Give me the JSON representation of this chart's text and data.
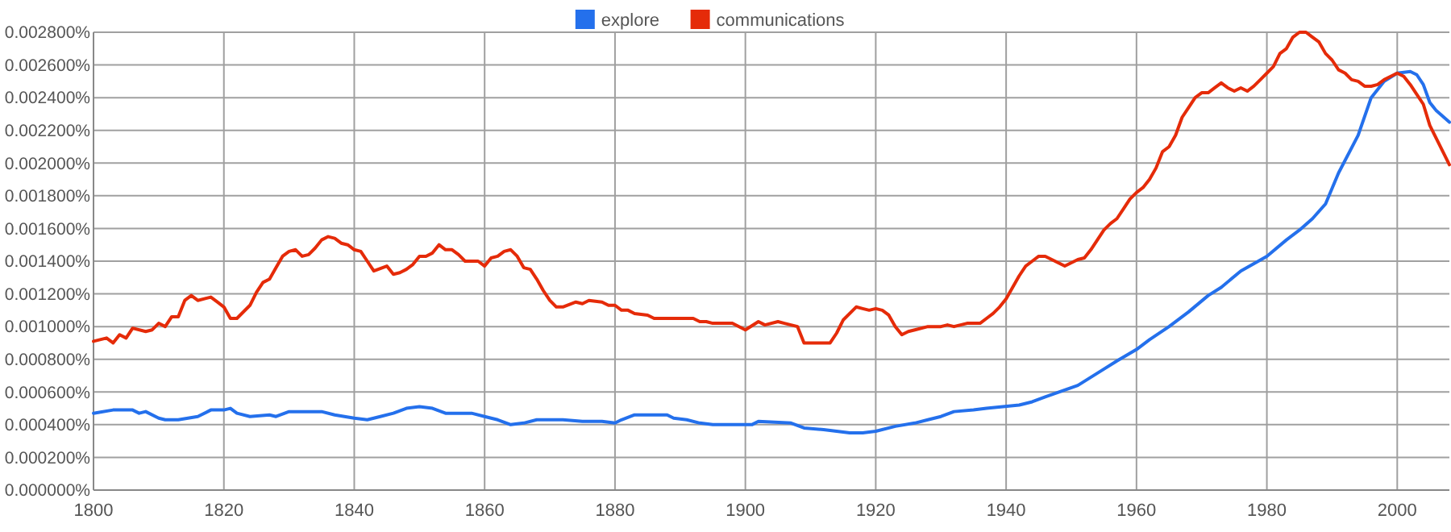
{
  "chart_data": {
    "type": "line",
    "legend": "top",
    "grid": true,
    "xlim": [
      1800,
      2008
    ],
    "xticks": [
      1800,
      1820,
      1840,
      1860,
      1880,
      1900,
      1920,
      1940,
      1960,
      1980,
      2000
    ],
    "ylim": [
      0,
      0.0028
    ],
    "yticks": [
      {
        "value": 0,
        "label": "0.000000%"
      },
      {
        "value": 0.0002,
        "label": "0.000200%"
      },
      {
        "value": 0.0004,
        "label": "0.000400%"
      },
      {
        "value": 0.0006,
        "label": "0.000600%"
      },
      {
        "value": 0.0008,
        "label": "0.000800%"
      },
      {
        "value": 0.001,
        "label": "0.001000%"
      },
      {
        "value": 0.0012,
        "label": "0.001200%"
      },
      {
        "value": 0.0014,
        "label": "0.001400%"
      },
      {
        "value": 0.0016,
        "label": "0.001600%"
      },
      {
        "value": 0.0018,
        "label": "0.001800%"
      },
      {
        "value": 0.002,
        "label": "0.002000%"
      },
      {
        "value": 0.0022,
        "label": "0.002200%"
      },
      {
        "value": 0.0024,
        "label": "0.002400%"
      },
      {
        "value": 0.0026,
        "label": "0.002600%"
      },
      {
        "value": 0.0028,
        "label": "0.002800%"
      }
    ],
    "series": [
      {
        "name": "explore",
        "color": "#2470ec",
        "x": [
          1800,
          1803,
          1806,
          1807,
          1808,
          1810,
          1811,
          1813,
          1816,
          1818,
          1820,
          1821,
          1822,
          1824,
          1827,
          1828,
          1830,
          1835,
          1837,
          1840,
          1842,
          1844,
          1846,
          1848,
          1850,
          1852,
          1854,
          1856,
          1858,
          1860,
          1862,
          1864,
          1866,
          1868,
          1870,
          1872,
          1875,
          1878,
          1880,
          1881,
          1883,
          1886,
          1888,
          1889,
          1891,
          1893,
          1895,
          1898,
          1901,
          1902,
          1907,
          1909,
          1912,
          1916,
          1918,
          1920,
          1923,
          1926,
          1928,
          1930,
          1932,
          1935,
          1937,
          1942,
          1944,
          1946,
          1951,
          1955,
          1957,
          1960,
          1962,
          1965,
          1968,
          1971,
          1973,
          1976,
          1980,
          1983,
          1985,
          1987,
          1989,
          1991,
          1994,
          1996,
          1998,
          2000,
          2002,
          2003,
          2004,
          2005,
          2006,
          2008
        ],
        "values": [
          0.00047,
          0.00049,
          0.00049,
          0.00047,
          0.00048,
          0.00044,
          0.00043,
          0.00043,
          0.00045,
          0.00049,
          0.00049,
          0.0005,
          0.00047,
          0.00045,
          0.00046,
          0.00045,
          0.00048,
          0.00048,
          0.00046,
          0.00044,
          0.00043,
          0.00045,
          0.00047,
          0.0005,
          0.00051,
          0.0005,
          0.00047,
          0.00047,
          0.00047,
          0.00045,
          0.00043,
          0.0004,
          0.00041,
          0.00043,
          0.00043,
          0.00043,
          0.00042,
          0.00042,
          0.00041,
          0.00043,
          0.00046,
          0.00046,
          0.00046,
          0.00044,
          0.00043,
          0.00041,
          0.0004,
          0.0004,
          0.0004,
          0.00042,
          0.00041,
          0.00038,
          0.00037,
          0.00035,
          0.00035,
          0.00036,
          0.00039,
          0.00041,
          0.00043,
          0.00045,
          0.00048,
          0.00049,
          0.0005,
          0.00052,
          0.00054,
          0.00057,
          0.00064,
          0.00074,
          0.00079,
          0.00086,
          0.00092,
          0.001,
          0.00109,
          0.00119,
          0.00124,
          0.00134,
          0.00143,
          0.00153,
          0.00159,
          0.00166,
          0.00175,
          0.00194,
          0.00217,
          0.0024,
          0.0025,
          0.00255,
          0.00256,
          0.00254,
          0.00248,
          0.00237,
          0.00232,
          0.00225
        ]
      },
      {
        "name": "communications",
        "color": "#e52b09",
        "x": [
          1800,
          1802,
          1803,
          1804,
          1805,
          1806,
          1808,
          1809,
          1810,
          1811,
          1812,
          1813,
          1814,
          1815,
          1816,
          1818,
          1819,
          1820,
          1821,
          1822,
          1824,
          1825,
          1826,
          1827,
          1828,
          1829,
          1830,
          1831,
          1832,
          1833,
          1834,
          1835,
          1836,
          1837,
          1838,
          1839,
          1840,
          1841,
          1842,
          1843,
          1845,
          1846,
          1847,
          1848,
          1849,
          1850,
          1851,
          1852,
          1853,
          1854,
          1855,
          1856,
          1857,
          1859,
          1860,
          1861,
          1862,
          1863,
          1864,
          1865,
          1866,
          1867,
          1868,
          1869,
          1870,
          1871,
          1872,
          1874,
          1875,
          1876,
          1878,
          1879,
          1880,
          1881,
          1882,
          1883,
          1885,
          1886,
          1888,
          1890,
          1892,
          1893,
          1894,
          1895,
          1898,
          1900,
          1902,
          1903,
          1905,
          1906,
          1908,
          1909,
          1910,
          1912,
          1913,
          1914,
          1915,
          1917,
          1918,
          1919,
          1920,
          1921,
          1922,
          1923,
          1924,
          1925,
          1926,
          1928,
          1930,
          1931,
          1932,
          1934,
          1936,
          1937,
          1938,
          1939,
          1940,
          1941,
          1942,
          1943,
          1944,
          1945,
          1946,
          1947,
          1948,
          1949,
          1950,
          1951,
          1952,
          1953,
          1954,
          1955,
          1956,
          1957,
          1958,
          1959,
          1960,
          1961,
          1962,
          1963,
          1964,
          1965,
          1966,
          1967,
          1968,
          1969,
          1970,
          1971,
          1972,
          1973,
          1974,
          1975,
          1976,
          1977,
          1978,
          1979,
          1980,
          1981,
          1982,
          1983,
          1984,
          1985,
          1986,
          1987,
          1988,
          1989,
          1990,
          1991,
          1992,
          1993,
          1994,
          1995,
          1996,
          1997,
          1998,
          1999,
          2000,
          2001,
          2002,
          2003,
          2004,
          2005,
          2006,
          2007,
          2008
        ],
        "values": [
          0.00091,
          0.00093,
          0.0009,
          0.00095,
          0.00093,
          0.00099,
          0.00097,
          0.00098,
          0.00102,
          0.001,
          0.00106,
          0.00106,
          0.00116,
          0.00119,
          0.00116,
          0.00118,
          0.00115,
          0.00112,
          0.00105,
          0.00105,
          0.00113,
          0.00121,
          0.00127,
          0.00129,
          0.00136,
          0.00143,
          0.00146,
          0.00147,
          0.00143,
          0.00144,
          0.00148,
          0.00153,
          0.00155,
          0.00154,
          0.00151,
          0.0015,
          0.00147,
          0.00146,
          0.0014,
          0.00134,
          0.00137,
          0.00132,
          0.00133,
          0.00135,
          0.00138,
          0.00143,
          0.00143,
          0.00145,
          0.0015,
          0.00147,
          0.00147,
          0.00144,
          0.0014,
          0.0014,
          0.00137,
          0.00142,
          0.00143,
          0.00146,
          0.00147,
          0.00143,
          0.00136,
          0.00135,
          0.00129,
          0.00122,
          0.00116,
          0.00112,
          0.00112,
          0.00115,
          0.00114,
          0.00116,
          0.00115,
          0.00113,
          0.00113,
          0.0011,
          0.0011,
          0.00108,
          0.00107,
          0.00105,
          0.00105,
          0.00105,
          0.00105,
          0.00103,
          0.00103,
          0.00102,
          0.00102,
          0.00098,
          0.00103,
          0.00101,
          0.00103,
          0.00102,
          0.001,
          0.0009,
          0.0009,
          0.0009,
          0.0009,
          0.00096,
          0.00104,
          0.00112,
          0.00111,
          0.0011,
          0.00111,
          0.0011,
          0.00107,
          0.001,
          0.00095,
          0.00097,
          0.00098,
          0.001,
          0.001,
          0.00101,
          0.001,
          0.00102,
          0.00102,
          0.00105,
          0.00108,
          0.00112,
          0.00117,
          0.00124,
          0.00131,
          0.00137,
          0.0014,
          0.00143,
          0.00143,
          0.00141,
          0.00139,
          0.00137,
          0.00139,
          0.00141,
          0.00142,
          0.00147,
          0.00153,
          0.00159,
          0.00163,
          0.00166,
          0.00172,
          0.00178,
          0.00182,
          0.00185,
          0.0019,
          0.00197,
          0.00207,
          0.0021,
          0.00217,
          0.00228,
          0.00234,
          0.0024,
          0.00243,
          0.00243,
          0.00246,
          0.00249,
          0.00246,
          0.00244,
          0.00246,
          0.00244,
          0.00247,
          0.00251,
          0.00255,
          0.00259,
          0.00267,
          0.0027,
          0.00277,
          0.0028,
          0.0028,
          0.00277,
          0.00274,
          0.00267,
          0.00263,
          0.00257,
          0.00255,
          0.00251,
          0.0025,
          0.00247,
          0.00247,
          0.00248,
          0.00251,
          0.00253,
          0.00255,
          0.00253,
          0.00248,
          0.00242,
          0.00236,
          0.00223,
          0.00215,
          0.00207,
          0.00199
        ]
      }
    ]
  }
}
